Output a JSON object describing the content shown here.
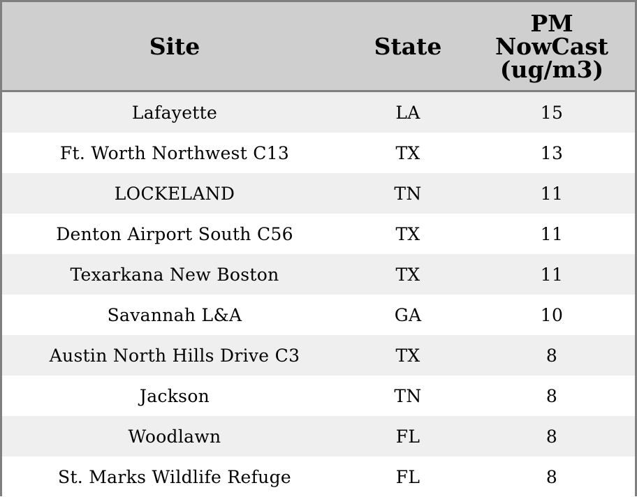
{
  "chart_data": {
    "type": "table",
    "columns": [
      "Site",
      "State",
      "PM\nNowCast\n(ug/m3)"
    ],
    "rows": [
      [
        "Lafayette",
        "LA",
        "15"
      ],
      [
        "Ft. Worth Northwest C13",
        "TX",
        "13"
      ],
      [
        "LOCKELAND",
        "TN",
        "11"
      ],
      [
        "Denton Airport South C56",
        "TX",
        "11"
      ],
      [
        "Texarkana New Boston",
        "TX",
        "11"
      ],
      [
        "Savannah L&A",
        "GA",
        "10"
      ],
      [
        "Austin North Hills Drive C3",
        "TX",
        "8"
      ],
      [
        "Jackson",
        "TN",
        "8"
      ],
      [
        "Woodlawn",
        "FL",
        "8"
      ],
      [
        "St. Marks Wildlife Refuge",
        "FL",
        "8"
      ]
    ],
    "colors": {
      "header_bg": "#cfcfcf",
      "stripe_bg": "#efefef",
      "border": "#7f7f7f"
    }
  }
}
